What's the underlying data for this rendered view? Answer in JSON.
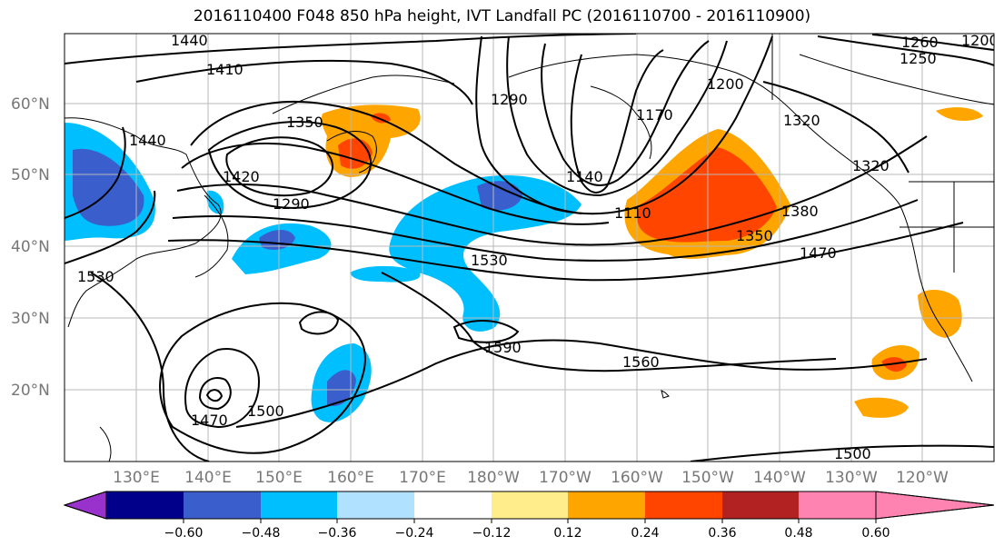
{
  "title": "2016110400 F048 850 hPa height, IVT Landfall PC (2016110700 - 2016110900)",
  "lat_labels": [
    "60°N",
    "50°N",
    "40°N",
    "30°N",
    "20°N"
  ],
  "lon_labels": [
    "130°E",
    "140°E",
    "150°E",
    "160°E",
    "170°E",
    "180°W",
    "170°W",
    "160°W",
    "150°W",
    "140°W",
    "130°W",
    "120°W"
  ],
  "contour_labels": [
    "1440",
    "1410",
    "1350",
    "1290",
    "1260",
    "1250",
    "1290",
    "1200",
    "1170",
    "1140",
    "1110",
    "1350",
    "1380",
    "1320",
    "1470",
    "1560",
    "1590",
    "1530",
    "1470",
    "1500",
    "1500",
    "1530",
    "1440",
    "1420",
    "1320",
    "1200"
  ],
  "colorbar": {
    "ticks": [
      "−0.60",
      "−0.48",
      "−0.36",
      "−0.24",
      "−0.12",
      "0.12",
      "0.24",
      "0.36",
      "0.48",
      "0.60"
    ],
    "colors": [
      "#9932cc",
      "#00008b",
      "#3a5fcd",
      "#00bfff",
      "#b0e2ff",
      "#ffffff",
      "#ffec8b",
      "#ffa500",
      "#ff4500",
      "#b22222",
      "#ff83b0"
    ]
  }
}
